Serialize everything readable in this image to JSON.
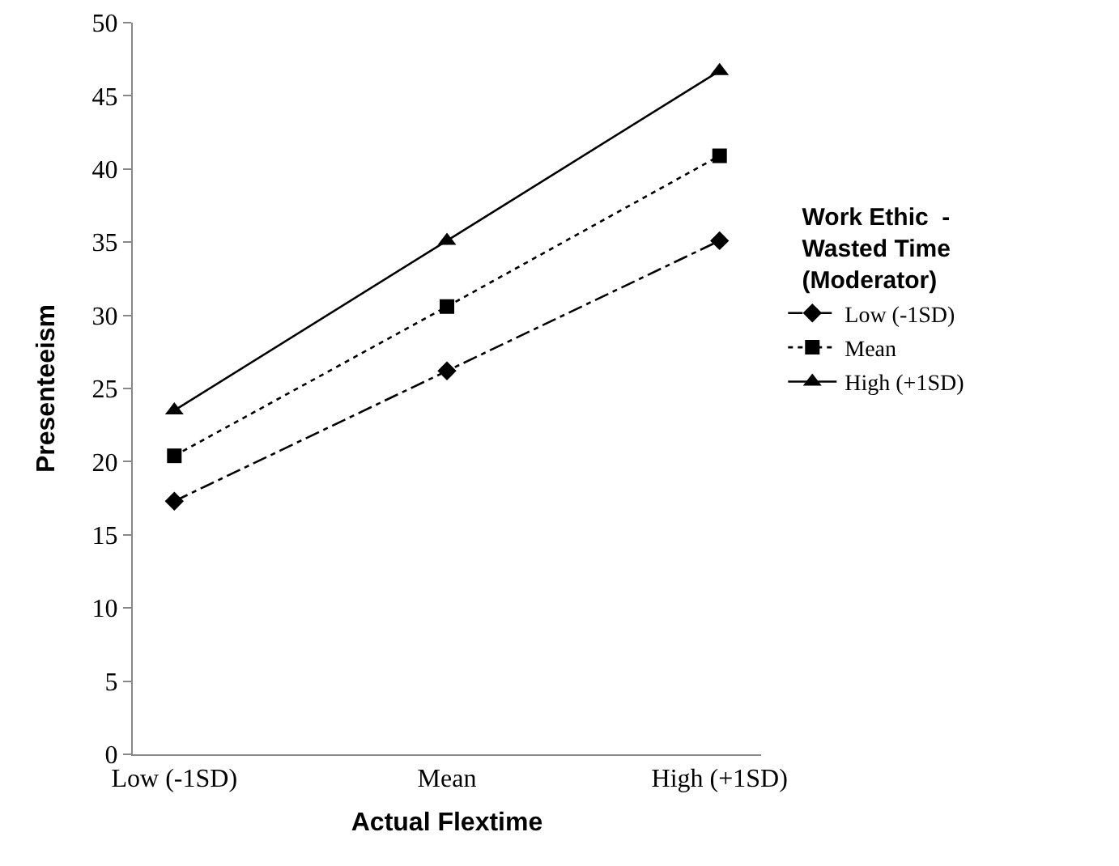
{
  "chart_data": {
    "type": "line",
    "xlabel": "Actual Flextime",
    "ylabel": "Presenteeism",
    "legend_title": "Work Ethic  -\nWasted Time\n(Moderator)",
    "categories": [
      "Low (-1SD)",
      "Mean",
      "High (+1SD)"
    ],
    "series": [
      {
        "name": "Low (-1SD)",
        "color": "#000000",
        "values": [
          17.3,
          26.2,
          35.1
        ],
        "marker": "diamond",
        "line_style": "dashdot"
      },
      {
        "name": "Mean",
        "color": "#000000",
        "values": [
          20.4,
          30.6,
          40.9
        ],
        "marker": "square",
        "line_style": "dotted"
      },
      {
        "name": "High (+1SD)",
        "color": "#000000",
        "values": [
          23.5,
          35.1,
          46.7
        ],
        "marker": "triangle",
        "line_style": "solid"
      }
    ],
    "ylim": [
      0,
      50
    ],
    "yticks": [
      0,
      5,
      10,
      15,
      20,
      25,
      30,
      35,
      40,
      45,
      50
    ],
    "grid": false,
    "legend": "right"
  }
}
